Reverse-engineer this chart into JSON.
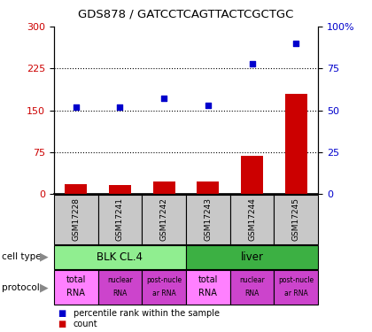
{
  "title": "GDS878 / GATCCTCAGTTACTCGCTGC",
  "samples": [
    "GSM17228",
    "GSM17241",
    "GSM17242",
    "GSM17243",
    "GSM17244",
    "GSM17245"
  ],
  "counts": [
    18,
    16,
    22,
    22,
    68,
    180
  ],
  "percentiles": [
    52,
    52,
    57,
    53,
    78,
    90
  ],
  "left_ylim": [
    0,
    300
  ],
  "right_ylim": [
    0,
    100
  ],
  "left_yticks": [
    0,
    75,
    150,
    225,
    300
  ],
  "right_yticks": [
    0,
    25,
    50,
    75,
    100
  ],
  "right_yticklabels": [
    "0",
    "25",
    "50",
    "75",
    "100%"
  ],
  "cell_types": [
    {
      "label": "BLK CL.4",
      "start": 0,
      "end": 3,
      "color": "#90EE90"
    },
    {
      "label": "liver",
      "start": 3,
      "end": 6,
      "color": "#3CB043"
    }
  ],
  "protocol_labels_top": [
    "total",
    "nuclear",
    "post-nucle",
    "total",
    "nuclear",
    "post-nucle"
  ],
  "protocol_labels_bot": [
    "RNA",
    "RNA",
    "ar RNA",
    "RNA",
    "RNA",
    "ar RNA"
  ],
  "protocol_colors": [
    "#FF80FF",
    "#CC44CC",
    "#CC44CC",
    "#FF80FF",
    "#CC44CC",
    "#CC44CC"
  ],
  "bar_color": "#CC0000",
  "dot_color": "#0000CC",
  "label_color_left": "#CC0000",
  "label_color_right": "#0000CC",
  "sample_box_color": "#C8C8C8",
  "bar_width": 0.5,
  "grid_yticks": [
    75,
    150,
    225
  ]
}
